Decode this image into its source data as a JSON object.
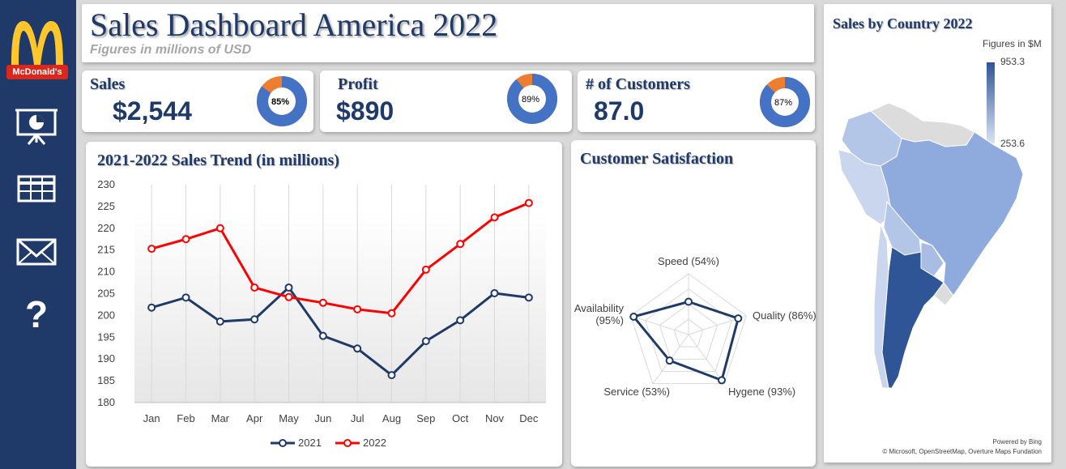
{
  "sidebar": {
    "brand": "McDonald's",
    "nav": [
      {
        "name": "presentation-icon"
      },
      {
        "name": "table-icon"
      },
      {
        "name": "mail-icon"
      },
      {
        "name": "help-icon"
      }
    ],
    "colors": {
      "bg": "#1f3a68",
      "arch": "#ffc72c",
      "red": "#da291c"
    }
  },
  "header": {
    "title": "Sales Dashboard America 2022",
    "subtitle": "Figures in millions of USD"
  },
  "kpis": [
    {
      "label": "Sales",
      "value": "$2,544",
      "percent": 85,
      "percent_label": "85%"
    },
    {
      "label": "Profit",
      "value": "$890",
      "percent": 89,
      "percent_label": "89%"
    },
    {
      "label": "# of Customers",
      "value": "87.0",
      "percent": 87,
      "percent_label": "87%"
    }
  ],
  "trend": {
    "title": "2021-2022 Sales Trend (in millions)",
    "chart_data": {
      "type": "line",
      "categories": [
        "Jan",
        "Feb",
        "Mar",
        "Apr",
        "May",
        "Jun",
        "Jul",
        "Aug",
        "Sep",
        "Oct",
        "Nov",
        "Dec"
      ],
      "series": [
        {
          "name": "2021",
          "color": "#1f3a68",
          "values": [
            201.8,
            204.1,
            198.6,
            199.1,
            206.4,
            195.3,
            192.4,
            186.3,
            194.1,
            198.9,
            205.1,
            204.1
          ]
        },
        {
          "name": "2022",
          "color": "#ff0000",
          "values": [
            215.3,
            217.5,
            220.0,
            206.4,
            204.2,
            202.9,
            201.4,
            200.5,
            210.5,
            216.4,
            222.5,
            225.8
          ]
        }
      ],
      "ylim": [
        180,
        230
      ],
      "yticks": [
        180,
        185,
        190,
        195,
        200,
        205,
        210,
        215,
        220,
        225,
        230
      ],
      "legend": "bottom"
    }
  },
  "satisfaction": {
    "title": "Customer Satisfaction",
    "chart_data": {
      "type": "radar",
      "axes": [
        {
          "label": "Speed (54%)",
          "value": 54
        },
        {
          "label": "Quality (86%)",
          "value": 86
        },
        {
          "label": "Hygene (93%)",
          "value": 93
        },
        {
          "label": "Service (53%)",
          "value": 53
        },
        {
          "label": "Availability\n(95%)",
          "value": 95
        }
      ],
      "color": "#1f3a68"
    }
  },
  "map": {
    "title": "Sales by Country 2022",
    "legend_title": "Figures in $M",
    "legend_max": "953.3",
    "legend_min": "253.6",
    "credit1": "Powered by Bing",
    "credit2": "© Microsoft, OpenStreetMap, Overture Maps Fundation"
  }
}
